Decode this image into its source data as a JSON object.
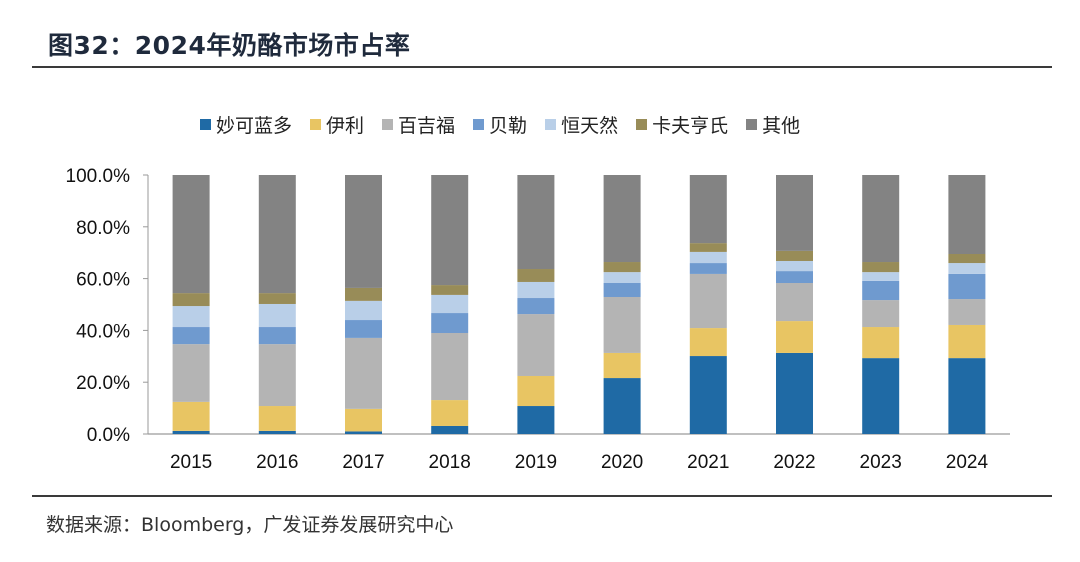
{
  "header": {
    "title": "图32：2024年奶酪市场市占率"
  },
  "footer": {
    "source": "数据来源：Bloomberg，广发证券发展研究中心"
  },
  "chart_data": {
    "type": "bar",
    "stacked": true,
    "title": "2024年奶酪市场市占率",
    "xlabel": "",
    "ylabel": "",
    "ylim": [
      0,
      100
    ],
    "y_ticks": [
      "0.0%",
      "20.0%",
      "40.0%",
      "60.0%",
      "80.0%",
      "100.0%"
    ],
    "y_tick_values": [
      0,
      20,
      40,
      60,
      80,
      100
    ],
    "legend_position": "top",
    "grid": false,
    "categories": [
      "2015",
      "2016",
      "2017",
      "2018",
      "2019",
      "2020",
      "2021",
      "2022",
      "2023",
      "2024"
    ],
    "series": [
      {
        "name": "妙可蓝多",
        "color": "#1f6aa5",
        "values": [
          1.2,
          1.2,
          1.0,
          3.1,
          10.8,
          21.6,
          30.1,
          31.3,
          29.3,
          29.3
        ]
      },
      {
        "name": "伊利",
        "color": "#e8c563",
        "values": [
          11.2,
          9.6,
          8.7,
          10.0,
          11.6,
          9.7,
          10.8,
          12.3,
          12.0,
          12.8
        ]
      },
      {
        "name": "百吉福",
        "color": "#b4b4b4",
        "values": [
          22.3,
          23.9,
          27.4,
          25.9,
          23.9,
          21.6,
          20.9,
          14.7,
          10.4,
          10.0
        ]
      },
      {
        "name": "贝勒",
        "color": "#6f9acf",
        "values": [
          6.6,
          6.6,
          6.9,
          7.7,
          6.2,
          5.4,
          4.2,
          4.6,
          7.4,
          9.7
        ]
      },
      {
        "name": "恒天然",
        "color": "#b9cfe8",
        "values": [
          8.1,
          8.9,
          7.4,
          7.0,
          6.2,
          4.2,
          4.3,
          3.9,
          3.4,
          4.2
        ]
      },
      {
        "name": "卡夫亨氏",
        "color": "#988c58",
        "values": [
          5.0,
          4.2,
          5.0,
          3.8,
          5.0,
          3.9,
          3.4,
          3.9,
          3.9,
          3.5
        ]
      },
      {
        "name": "其他",
        "color": "#838383",
        "values": [
          45.6,
          45.6,
          43.6,
          42.5,
          36.3,
          33.6,
          26.3,
          29.3,
          33.6,
          30.5
        ]
      }
    ]
  }
}
